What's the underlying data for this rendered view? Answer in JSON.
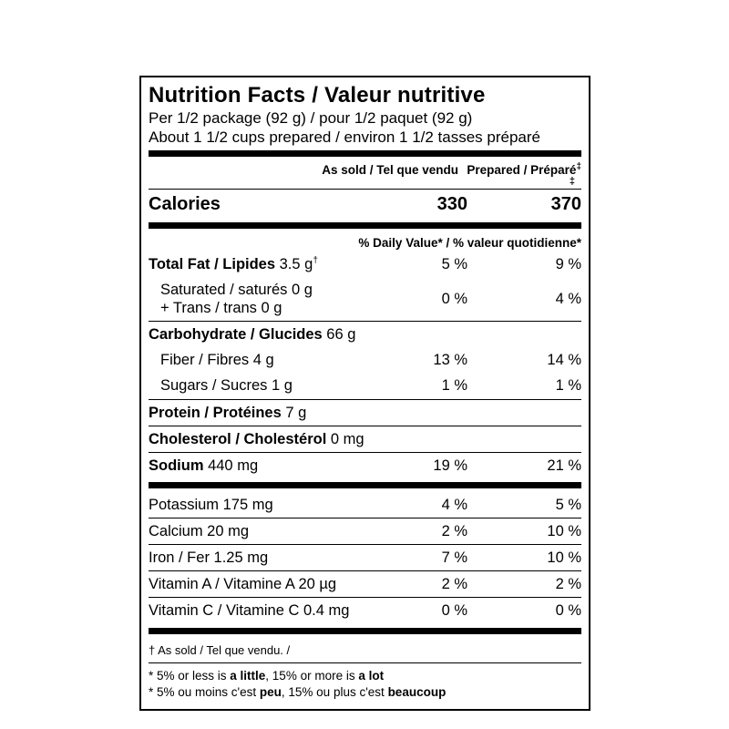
{
  "label": {
    "title": "Nutrition Facts / Valeur nutritive",
    "serving_line1": "Per 1/2 package (92 g) / pour 1/2 paquet (92 g)",
    "serving_line2": "About 1 1/2 cups prepared / environ 1 1/2 tasses préparé",
    "col_header": {
      "as_sold": "As sold / Tel que vendu",
      "prepared": "Prepared / Préparé",
      "prepared_mark": "‡",
      "prepared_mark_line2": "‡"
    },
    "calories": {
      "name": "Calories",
      "as_sold": "330",
      "prepared": "370"
    },
    "dv_header": "% Daily Value* / % valeur quotidienne*",
    "rows": {
      "total_fat": {
        "bold": "Total Fat / Lipides",
        "rest": " 3.5 g",
        "mark": "†",
        "v1": "5 %",
        "v2": "9 %"
      },
      "saturated": {
        "line1": "Saturated / saturés 0 g",
        "line2": "+ Trans / trans 0 g",
        "v1": "0 %",
        "v2": "4 %"
      },
      "carbohydrate": {
        "bold": "Carbohydrate / Glucides",
        "rest": " 66 g"
      },
      "fiber": {
        "text": "Fiber / Fibres 4 g",
        "v1": "13 %",
        "v2": "14 %"
      },
      "sugars": {
        "text": "Sugars / Sucres 1 g",
        "v1": "1 %",
        "v2": "1 %"
      },
      "protein": {
        "bold": "Protein / Protéines",
        "rest": " 7 g"
      },
      "cholesterol": {
        "bold": "Cholesterol / Cholestérol",
        "rest": " 0 mg"
      },
      "sodium": {
        "bold": "Sodium",
        "rest": " 440 mg",
        "v1": "19 %",
        "v2": "21 %"
      },
      "potassium": {
        "text": "Potassium 175 mg",
        "v1": "4 %",
        "v2": "5 %"
      },
      "calcium": {
        "text": "Calcium 20 mg",
        "v1": "2 %",
        "v2": "10 %"
      },
      "iron": {
        "text": "Iron / Fer 1.25 mg",
        "v1": "7 %",
        "v2": "10 %"
      },
      "vitamin_a": {
        "text": "Vitamin A / Vitamine A 20 µg",
        "v1": "2 %",
        "v2": "2 %"
      },
      "vitamin_c": {
        "text": "Vitamin C / Vitamine C 0.4 mg",
        "v1": "0 %",
        "v2": "0 %"
      }
    },
    "footnotes": {
      "dagger": "† As sold / Tel que vendu. /",
      "en": {
        "p1": "* 5% or less is ",
        "b1": "a little",
        "p2": ", 15% or more is ",
        "b2": "a lot"
      },
      "fr": {
        "p1": "* 5% ou moins c'est ",
        "b1": "peu",
        "p2": ", 15% ou plus c'est ",
        "b2": "beaucoup"
      }
    }
  }
}
